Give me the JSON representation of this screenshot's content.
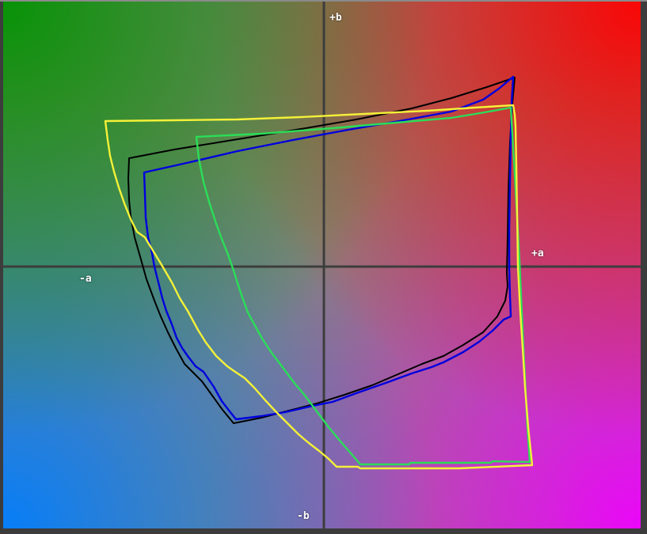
{
  "labels": {
    "plus_b": "+b",
    "minus_b": "-b",
    "plus_a": "+a",
    "minus_a": "-a"
  },
  "chart_data": {
    "type": "line",
    "subtype": "lab-ab-plane-gamut-comparison",
    "title": "",
    "xlabel_positive": "+a",
    "xlabel_negative": "-a",
    "ylabel_positive": "+b",
    "ylabel_negative": "-b",
    "grid": "center-axes-only",
    "legend_position": "none",
    "axes": {
      "vertical_x": 409,
      "horizontal_y": 337,
      "x_min": 4,
      "x_max": 809,
      "y_min": 2,
      "y_max": 668,
      "color": "#3d3d3d",
      "stroke_width": 3
    },
    "background": {
      "base": "#8a8278",
      "top_left": "#009400",
      "top_right": "#ff0000",
      "bottom_left": "#007eff",
      "bottom_right": "#f000ff",
      "frame": "#3c3c3c"
    },
    "series": [
      {
        "name": "black-gamut",
        "color": "#000000",
        "stroke_width": 2,
        "points": [
          [
            163,
            200
          ],
          [
            220,
            189
          ],
          [
            300,
            176
          ],
          [
            380,
            163
          ],
          [
            450,
            151
          ],
          [
            520,
            137
          ],
          [
            570,
            124
          ],
          [
            615,
            110
          ],
          [
            650,
            98
          ],
          [
            647,
            130
          ],
          [
            644,
            180
          ],
          [
            642,
            240
          ],
          [
            641,
            300
          ],
          [
            640,
            345
          ],
          [
            641,
            362
          ],
          [
            638,
            380
          ],
          [
            628,
            400
          ],
          [
            610,
            420
          ],
          [
            585,
            436
          ],
          [
            560,
            450
          ],
          [
            533,
            460
          ],
          [
            505,
            472
          ],
          [
            470,
            487
          ],
          [
            435,
            499
          ],
          [
            400,
            510
          ],
          [
            365,
            519
          ],
          [
            330,
            528
          ],
          [
            295,
            535
          ],
          [
            281,
            518
          ],
          [
            268,
            500
          ],
          [
            255,
            482
          ],
          [
            243,
            470
          ],
          [
            233,
            460
          ],
          [
            222,
            440
          ],
          [
            212,
            420
          ],
          [
            203,
            400
          ],
          [
            195,
            380
          ],
          [
            185,
            353
          ],
          [
            178,
            328
          ],
          [
            170,
            300
          ],
          [
            165,
            273
          ],
          [
            163,
            253
          ],
          [
            162,
            226
          ]
        ]
      },
      {
        "name": "blue-gamut",
        "color": "#0000dd",
        "stroke_width": 2.4,
        "points": [
          [
            182,
            218
          ],
          [
            240,
            205
          ],
          [
            300,
            191
          ],
          [
            370,
            177
          ],
          [
            440,
            164
          ],
          [
            510,
            152
          ],
          [
            570,
            141
          ],
          [
            610,
            126
          ],
          [
            630,
            112
          ],
          [
            648,
            97
          ],
          [
            646,
            130
          ],
          [
            645,
            170
          ],
          [
            644,
            230
          ],
          [
            643,
            290
          ],
          [
            643,
            340
          ],
          [
            644,
            375
          ],
          [
            645,
            400
          ],
          [
            636,
            404
          ],
          [
            622,
            418
          ],
          [
            605,
            432
          ],
          [
            585,
            445
          ],
          [
            560,
            458
          ],
          [
            545,
            464
          ],
          [
            520,
            472
          ],
          [
            490,
            483
          ],
          [
            450,
            497
          ],
          [
            420,
            508
          ],
          [
            395,
            513
          ],
          [
            360,
            521
          ],
          [
            330,
            526
          ],
          [
            298,
            530
          ],
          [
            290,
            520
          ],
          [
            280,
            507
          ],
          [
            270,
            489
          ],
          [
            257,
            470
          ],
          [
            247,
            463
          ],
          [
            237,
            450
          ],
          [
            230,
            440
          ],
          [
            223,
            427
          ],
          [
            217,
            410
          ],
          [
            210,
            393
          ],
          [
            205,
            377
          ],
          [
            200,
            357
          ],
          [
            195,
            337
          ],
          [
            192,
            320
          ],
          [
            187,
            300
          ],
          [
            184,
            275
          ],
          [
            183,
            245
          ]
        ]
      },
      {
        "name": "green-gamut",
        "color": "#2bdd58",
        "stroke_width": 2.4,
        "points": [
          [
            248,
            173
          ],
          [
            330,
            169
          ],
          [
            420,
            162
          ],
          [
            500,
            155
          ],
          [
            570,
            149
          ],
          [
            612,
            142
          ],
          [
            645,
            136
          ],
          [
            650,
            220
          ],
          [
            656,
            330
          ],
          [
            661,
            440
          ],
          [
            666,
            540
          ],
          [
            669,
            584
          ],
          [
            622,
            583
          ],
          [
            620,
            585
          ],
          [
            518,
            585
          ],
          [
            517,
            587
          ],
          [
            455,
            587
          ],
          [
            443,
            573
          ],
          [
            430,
            558
          ],
          [
            415,
            540
          ],
          [
            400,
            520
          ],
          [
            385,
            500
          ],
          [
            370,
            482
          ],
          [
            356,
            463
          ],
          [
            343,
            446
          ],
          [
            331,
            428
          ],
          [
            320,
            408
          ],
          [
            313,
            395
          ],
          [
            306,
            376
          ],
          [
            300,
            358
          ],
          [
            295,
            342
          ],
          [
            288,
            322
          ],
          [
            280,
            302
          ],
          [
            272,
            280
          ],
          [
            264,
            255
          ],
          [
            257,
            230
          ],
          [
            251,
            200
          ]
        ]
      },
      {
        "name": "yellow-gamut",
        "color": "#f4f138",
        "stroke_width": 2.4,
        "points": [
          [
            133,
            153
          ],
          [
            220,
            152
          ],
          [
            300,
            151
          ],
          [
            380,
            148
          ],
          [
            460,
            144
          ],
          [
            540,
            140
          ],
          [
            600,
            136
          ],
          [
            648,
            133
          ],
          [
            650,
            145
          ],
          [
            651,
            160
          ],
          [
            652,
            210
          ],
          [
            653,
            270
          ],
          [
            654,
            337
          ],
          [
            657,
            395
          ],
          [
            660,
            440
          ],
          [
            663,
            490
          ],
          [
            667,
            540
          ],
          [
            671,
            578
          ],
          [
            672,
            588
          ],
          [
            580,
            592
          ],
          [
            500,
            592
          ],
          [
            455,
            592
          ],
          [
            452,
            590
          ],
          [
            425,
            590
          ],
          [
            415,
            580
          ],
          [
            403,
            570
          ],
          [
            390,
            560
          ],
          [
            377,
            549
          ],
          [
            363,
            535
          ],
          [
            349,
            521
          ],
          [
            335,
            506
          ],
          [
            321,
            490
          ],
          [
            309,
            478
          ],
          [
            297,
            470
          ],
          [
            287,
            463
          ],
          [
            273,
            450
          ],
          [
            260,
            433
          ],
          [
            250,
            417
          ],
          [
            237,
            393
          ],
          [
            227,
            377
          ],
          [
            217,
            357
          ],
          [
            203,
            333
          ],
          [
            192,
            315
          ],
          [
            183,
            300
          ],
          [
            173,
            293
          ],
          [
            165,
            277
          ],
          [
            157,
            257
          ],
          [
            150,
            237
          ],
          [
            144,
            217
          ],
          [
            139,
            197
          ],
          [
            136,
            177
          ]
        ]
      }
    ]
  }
}
